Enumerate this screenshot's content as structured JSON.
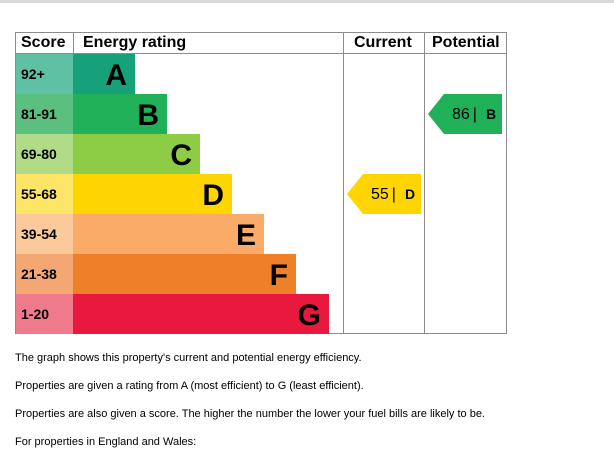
{
  "chart_data": {
    "type": "table",
    "headers": {
      "score": "Score",
      "rating": "Energy rating",
      "current": "Current",
      "potential": "Potential"
    },
    "bands": [
      {
        "range": "92+",
        "letter": "A",
        "color": "#17a17b",
        "score_bg": "#5fc1a3"
      },
      {
        "range": "81-91",
        "letter": "B",
        "color": "#20b158",
        "score_bg": "#5bbf7f"
      },
      {
        "range": "69-80",
        "letter": "C",
        "color": "#8dcd46",
        "score_bg": "#b1db86"
      },
      {
        "range": "55-68",
        "letter": "D",
        "color": "#ffd500",
        "score_bg": "#fde567"
      },
      {
        "range": "39-54",
        "letter": "E",
        "color": "#fbab68",
        "score_bg": "#fcc99a"
      },
      {
        "range": "21-38",
        "letter": "F",
        "color": "#f07f2a",
        "score_bg": "#f4a673"
      },
      {
        "range": "1-20",
        "letter": "G",
        "color": "#e9183f",
        "score_bg": "#ef7a8c"
      }
    ],
    "current": {
      "score": "55",
      "letter": "D",
      "color": "#ffd500"
    },
    "potential": {
      "score": "86",
      "letter": "B",
      "color": "#20b158"
    }
  },
  "notes": [
    "The graph shows this property's current and potential energy efficiency.",
    "Properties are given a rating from A (most efficient) to G (least efficient).",
    "Properties are also given a score. The higher the number the lower your fuel bills are likely to be.",
    "For properties in England and Wales:"
  ]
}
